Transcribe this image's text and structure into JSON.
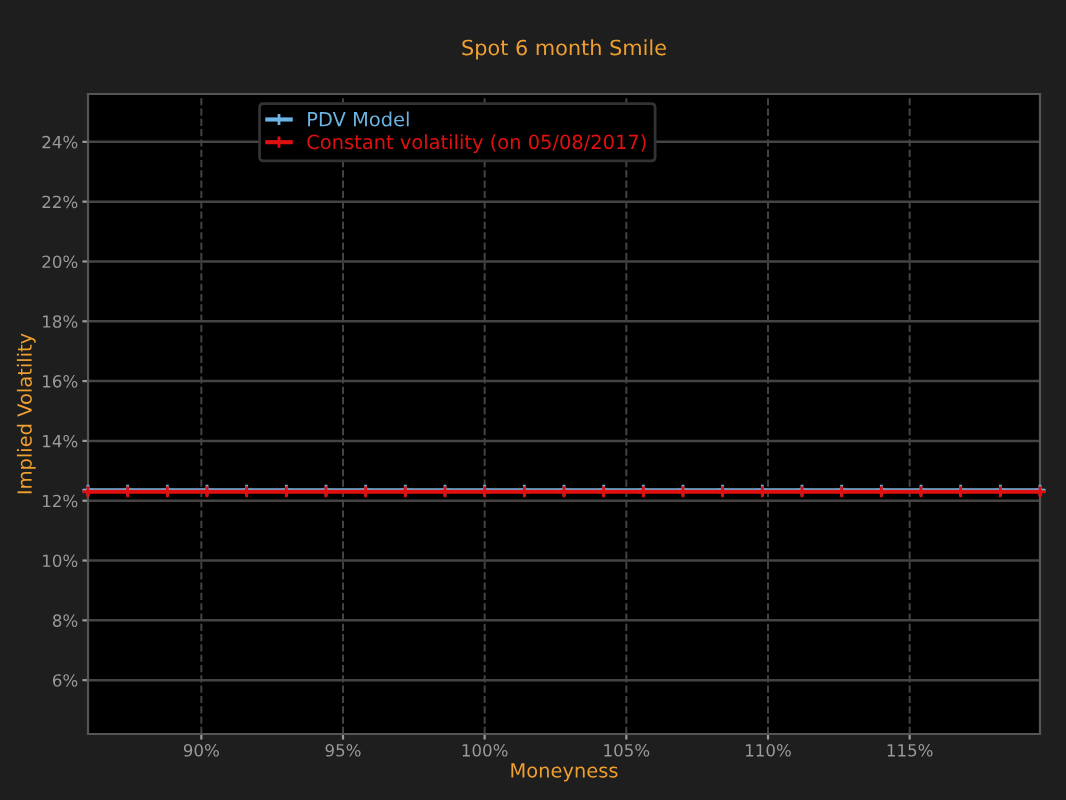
{
  "chart_data": {
    "type": "line",
    "title": "Spot 6 month Smile",
    "xlabel": "Moneyness",
    "ylabel": "Implied Volatility",
    "x": [
      86,
      87.4,
      88.8,
      90.2,
      91.6,
      93,
      94.4,
      95.8,
      97.2,
      98.6,
      100,
      101.4,
      102.8,
      104.2,
      105.6,
      107,
      108.4,
      109.8,
      111.2,
      112.6,
      114,
      115.4,
      116.8,
      118.2,
      119.6
    ],
    "series": [
      {
        "name": "PDV Model",
        "color": "#6cb4e4",
        "values": [
          12.35,
          12.35,
          12.35,
          12.35,
          12.35,
          12.35,
          12.35,
          12.35,
          12.35,
          12.35,
          12.35,
          12.35,
          12.35,
          12.35,
          12.35,
          12.35,
          12.35,
          12.35,
          12.35,
          12.35,
          12.35,
          12.35,
          12.35,
          12.35,
          12.35
        ]
      },
      {
        "name": "Constant volatility (on 05/08/2017)",
        "color": "#e01010",
        "values": [
          12.3,
          12.3,
          12.3,
          12.3,
          12.3,
          12.3,
          12.3,
          12.3,
          12.3,
          12.3,
          12.3,
          12.3,
          12.3,
          12.3,
          12.3,
          12.3,
          12.3,
          12.3,
          12.3,
          12.3,
          12.3,
          12.3,
          12.3,
          12.3,
          12.3
        ]
      }
    ],
    "xlim": [
      86,
      119.6
    ],
    "xticks": [
      {
        "value": 90,
        "label": "90%"
      },
      {
        "value": 95,
        "label": "95%"
      },
      {
        "value": 100,
        "label": "100%"
      },
      {
        "value": 105,
        "label": "105%"
      },
      {
        "value": 110,
        "label": "110%"
      },
      {
        "value": 115,
        "label": "115%"
      }
    ],
    "ylim": [
      4.2,
      25.6
    ],
    "yticks": [
      {
        "value": 6,
        "label": "6%"
      },
      {
        "value": 8,
        "label": "8%"
      },
      {
        "value": 10,
        "label": "10%"
      },
      {
        "value": 12,
        "label": "12%"
      },
      {
        "value": 14,
        "label": "14%"
      },
      {
        "value": 16,
        "label": "16%"
      },
      {
        "value": 18,
        "label": "18%"
      },
      {
        "value": 20,
        "label": "20%"
      },
      {
        "value": 22,
        "label": "22%"
      },
      {
        "value": 24,
        "label": "24%"
      }
    ],
    "grid": true,
    "legend": "top left",
    "marker": "cross",
    "line_style": "solid"
  }
}
